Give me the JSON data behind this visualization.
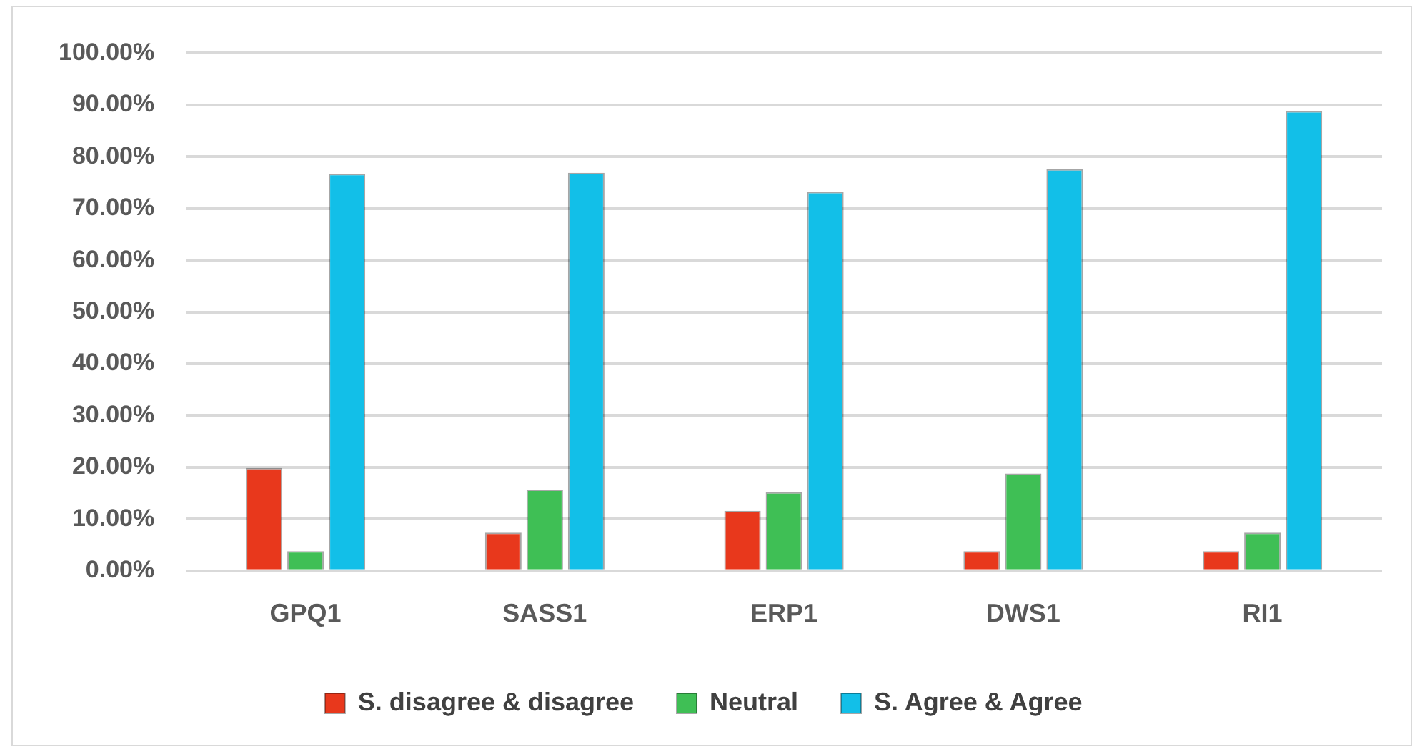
{
  "chart_data": {
    "type": "bar",
    "categories": [
      "GPQ1",
      "SASS1",
      "ERP1",
      "DWS1",
      "RI1"
    ],
    "series": [
      {
        "name": "S. disagree & disagree",
        "color": "#e8381c",
        "values": [
          19.9,
          7.4,
          11.6,
          3.8,
          3.8
        ]
      },
      {
        "name": "Neutral",
        "color": "#3fbf55",
        "values": [
          3.8,
          15.7,
          15.2,
          18.8,
          7.4
        ]
      },
      {
        "name": "S. Agree & Agree",
        "color": "#12bfe8",
        "values": [
          76.7,
          76.9,
          73.2,
          77.6,
          88.8
        ]
      }
    ],
    "ylim": [
      0,
      100
    ],
    "yticks": [
      {
        "value": 0,
        "label": "0.00%"
      },
      {
        "value": 10,
        "label": "10.00%"
      },
      {
        "value": 20,
        "label": "20.00%"
      },
      {
        "value": 30,
        "label": "30.00%"
      },
      {
        "value": 40,
        "label": "40.00%"
      },
      {
        "value": 50,
        "label": "50.00%"
      },
      {
        "value": 60,
        "label": "60.00%"
      },
      {
        "value": 70,
        "label": "70.00%"
      },
      {
        "value": 80,
        "label": "80.00%"
      },
      {
        "value": 90,
        "label": "90.00%"
      },
      {
        "value": 100,
        "label": "100.00%"
      }
    ],
    "grid": "y",
    "legend": "bottom"
  }
}
